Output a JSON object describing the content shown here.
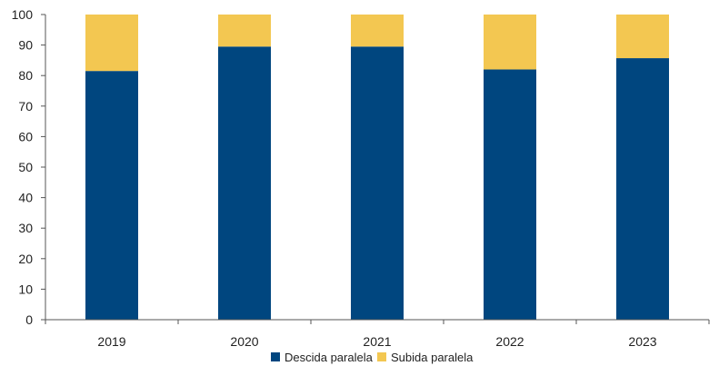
{
  "chart_data": {
    "type": "bar",
    "stacked": true,
    "categories": [
      "2019",
      "2020",
      "2021",
      "2022",
      "2023"
    ],
    "series": [
      {
        "name": "Descida paralela",
        "color": "#00467F",
        "values": [
          81.5,
          89.5,
          89.5,
          82,
          85.7
        ]
      },
      {
        "name": "Subida paralela",
        "color": "#F3C751",
        "values": [
          18.5,
          10.5,
          10.5,
          18,
          14.3
        ]
      }
    ],
    "ylim": [
      0,
      100
    ],
    "yticks": [
      "0",
      "10",
      "20",
      "30",
      "40",
      "50",
      "60",
      "70",
      "80",
      "90",
      "100"
    ],
    "title": "",
    "xlabel": "",
    "ylabel": "",
    "grid": false,
    "legend_position": "bottom-center"
  }
}
